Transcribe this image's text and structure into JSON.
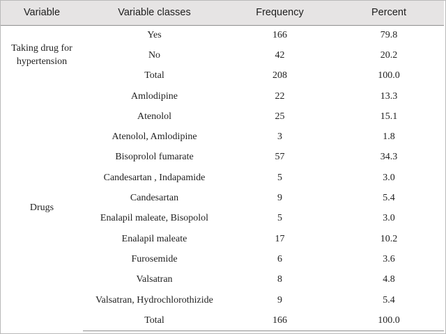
{
  "table": {
    "headers": [
      "Variable",
      "Variable classes",
      "Frequency",
      "Percent"
    ],
    "group1": {
      "label": "Taking drug for hypertension",
      "rows": [
        {
          "cls": "Yes",
          "freq": "166",
          "pct": "79.8"
        },
        {
          "cls": "No",
          "freq": "42",
          "pct": "20.2"
        },
        {
          "cls": "Total",
          "freq": "208",
          "pct": "100.0"
        }
      ]
    },
    "group2": {
      "label": "Drugs",
      "rows": [
        {
          "cls": "Amlodipine",
          "freq": "22",
          "pct": "13.3"
        },
        {
          "cls": "Atenolol",
          "freq": "25",
          "pct": "15.1"
        },
        {
          "cls": "Atenolol, Amlodipine",
          "freq": "3",
          "pct": "1.8"
        },
        {
          "cls": "Bisoprolol fumarate",
          "freq": "57",
          "pct": "34.3"
        },
        {
          "cls": "Candesartan , Indapamide",
          "freq": "5",
          "pct": "3.0"
        },
        {
          "cls": "Candesartan",
          "freq": "9",
          "pct": "5.4"
        },
        {
          "cls": "Enalapil maleate, Bisopolol",
          "freq": "5",
          "pct": "3.0"
        },
        {
          "cls": "Enalapil maleate",
          "freq": "17",
          "pct": "10.2"
        },
        {
          "cls": "Furosemide",
          "freq": "6",
          "pct": "3.6"
        },
        {
          "cls": "Valsatran",
          "freq": "8",
          "pct": "4.8"
        },
        {
          "cls": "Valsatran, Hydrochlorothizide",
          "freq": "9",
          "pct": "5.4"
        },
        {
          "cls": "Total",
          "freq": "166",
          "pct": "100.0"
        }
      ]
    }
  }
}
